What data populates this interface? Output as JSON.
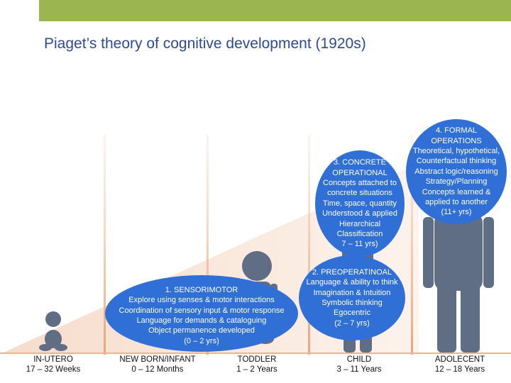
{
  "title": "Piaget’s theory of cognitive development (1920s)",
  "colors": {
    "accent_bar": "#9bb650",
    "title": "#2d4a92",
    "bubble": "#2f6fd6",
    "figure": "#5f6e84"
  },
  "stages": [
    {
      "name": "IN-UTERO",
      "age": "17 – 32 Weeks"
    },
    {
      "name": "NEW BORN/INFANT",
      "age": "0 – 12 Months"
    },
    {
      "name": "TODDLER",
      "age": "1 – 2 Years"
    },
    {
      "name": "CHILD",
      "age": "3 – 11 Years"
    },
    {
      "name": "ADOLECENT",
      "age": "12 – 18 Years"
    }
  ],
  "bubbles": {
    "sensorimotor": [
      "1. SENSORIMOTOR",
      "Explore using senses & motor interactions",
      "Coordination of sensory input & motor response",
      "Language for demands & cataloguing",
      "Object permanence developed",
      "(0 – 2 yrs)"
    ],
    "preoperational": [
      "2. PREOPERATINOAL",
      "Language & ability to think",
      "Imagination & Intuition",
      "Symbolic thinking",
      "Egocentric",
      "(2 – 7 yrs)"
    ],
    "concrete": [
      "3. CONCRETE",
      "OPERATIONAL",
      "Concepts attached to",
      "concrete situations",
      "Time, space, quantity",
      "Understood & applied",
      "Hierarchical",
      "Classification",
      "7 – 11 yrs)"
    ],
    "formal": [
      "4. FORMAL",
      "OPERATIONS",
      "Theoretical, hypothetical,",
      "Counterfactual thinking",
      "Abstract logic/reasoning",
      "Strategy/Planning",
      "Concepts learned &",
      "applied to another",
      "(11+ yrs)"
    ]
  },
  "figures": [
    "baby-icon",
    "infant-icon",
    "toddler-icon",
    "child-icon",
    "adolescent-icon"
  ]
}
